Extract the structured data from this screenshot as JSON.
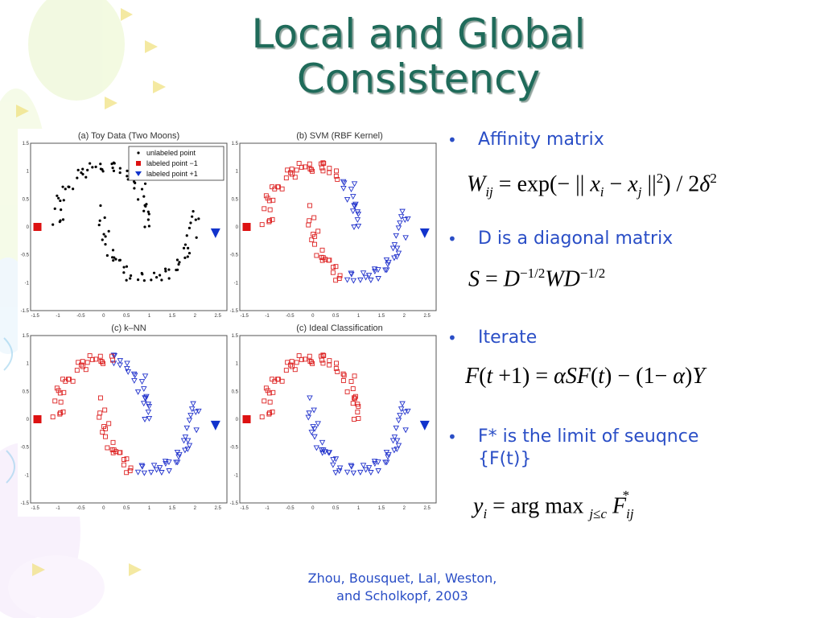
{
  "slide": {
    "title_line1": "Local and Global",
    "title_line2": "Consistency",
    "citation_line1": "Zhou, Bousquet, Lal, Weston,",
    "citation_line2": "and Scholkopf, 2003",
    "colors": {
      "title": "#1f6b5a",
      "bullets": "#2a4ec6"
    }
  },
  "bullets": [
    {
      "text": "Affinity matrix"
    },
    {
      "text": "D is a diagonal matrix"
    },
    {
      "text": "Iterate"
    },
    {
      "text": "F* is the limit of seuqnce",
      "text2": "{F(t)}"
    }
  ],
  "equations": {
    "affinity": "W_ij = exp(−|| x_i − x_j ||²) / 2δ²",
    "normalized": "S = D^(−1/2) W D^(−1/2)",
    "iterate": "F(t+1) = αSF(t) − (1−α)Y",
    "label": "y_i = arg max_{j≤c} F*_ij"
  },
  "panels": {
    "a": "(a) Toy Data (Two Moons)",
    "b": "(b) SVM  (RBF Kernel)",
    "c": "(c) k–NN",
    "d": "(c) Ideal Classification"
  },
  "legend": {
    "unlabeled": "unlabeled point",
    "neg": "labeled point  −1",
    "pos": "labeled point +1"
  },
  "xticks": [
    "-1.5",
    "-1",
    "-0.5",
    "0",
    "0.5",
    "1",
    "1.5",
    "2",
    "2.5"
  ],
  "yticks": [
    "1.5",
    "1",
    "0.5",
    "0",
    "-0.5",
    "-1",
    "-1.5"
  ]
}
